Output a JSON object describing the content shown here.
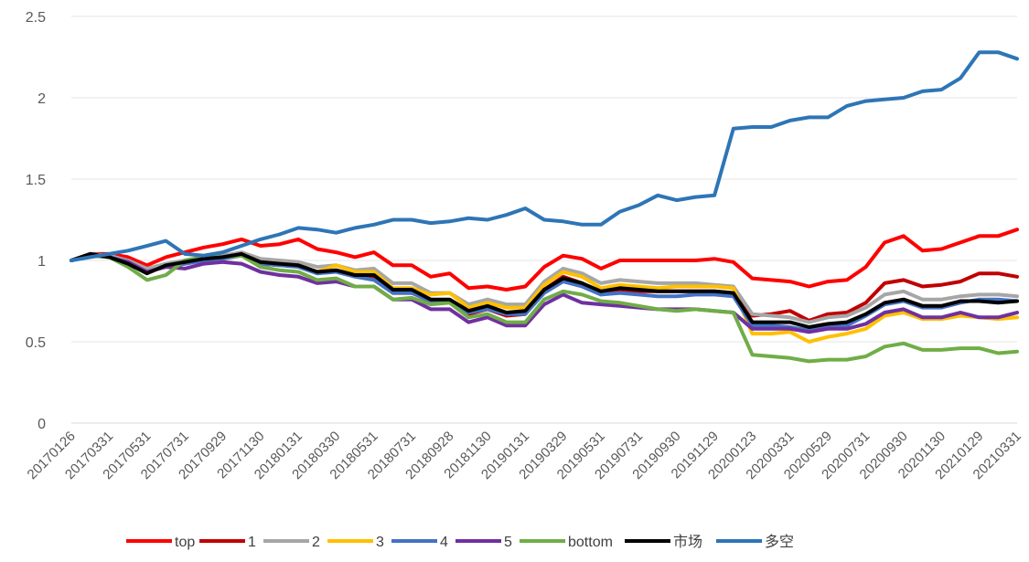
{
  "chart_data": {
    "type": "line",
    "title": "",
    "xlabel": "",
    "ylabel": "",
    "ylim": [
      0,
      2.5
    ],
    "yticks": [
      "0",
      "0.5",
      "1",
      "1.5",
      "2",
      "2.5"
    ],
    "grid": "horizontal",
    "legend": "bottom",
    "x_tick_labels": [
      "20170126",
      "20170331",
      "20170531",
      "20170731",
      "20170929",
      "20171130",
      "20180131",
      "20180330",
      "20180531",
      "20180731",
      "20180928",
      "20181130",
      "20190131",
      "20190329",
      "20190531",
      "20190731",
      "20190930",
      "20191129",
      "20200123",
      "20200331",
      "20200529",
      "20200731",
      "20200930",
      "20201130",
      "20210129",
      "20210331"
    ],
    "x": [
      "20170126",
      "20170228",
      "20170331",
      "20170428",
      "20170531",
      "20170630",
      "20170731",
      "20170831",
      "20170929",
      "20171031",
      "20171130",
      "20171229",
      "20180131",
      "20180228",
      "20180330",
      "20180427",
      "20180531",
      "20180629",
      "20180731",
      "20180831",
      "20180928",
      "20181031",
      "20181130",
      "20181228",
      "20190131",
      "20190228",
      "20190329",
      "20190430",
      "20190531",
      "20190628",
      "20190731",
      "20190830",
      "20190930",
      "20191031",
      "20191129",
      "20191231",
      "20200123",
      "20200228",
      "20200331",
      "20200430",
      "20200529",
      "20200630",
      "20200731",
      "20200831",
      "20200930",
      "20201030",
      "20201130",
      "20201231",
      "20210129",
      "20210226",
      "20210331"
    ],
    "series": [
      {
        "name": "top",
        "color": "#ff0000",
        "values": [
          1.0,
          1.04,
          1.04,
          1.02,
          0.97,
          1.02,
          1.05,
          1.08,
          1.1,
          1.13,
          1.09,
          1.1,
          1.13,
          1.07,
          1.05,
          1.02,
          1.05,
          0.97,
          0.97,
          0.9,
          0.92,
          0.83,
          0.84,
          0.82,
          0.84,
          0.96,
          1.03,
          1.01,
          0.95,
          1.0,
          1.0,
          1.0,
          1.0,
          1.0,
          1.01,
          0.99,
          0.89,
          0.88,
          0.87,
          0.84,
          0.87,
          0.88,
          0.96,
          1.11,
          1.15,
          1.06,
          1.07,
          1.11,
          1.15,
          1.15,
          1.19
        ]
      },
      {
        "name": "1",
        "color": "#c00000",
        "values": [
          1.0,
          1.04,
          1.03,
          1.0,
          0.94,
          0.97,
          0.98,
          1.0,
          1.02,
          1.04,
          0.98,
          0.97,
          0.97,
          0.93,
          0.94,
          0.91,
          0.9,
          0.8,
          0.8,
          0.75,
          0.75,
          0.67,
          0.7,
          0.66,
          0.67,
          0.82,
          0.9,
          0.86,
          0.8,
          0.82,
          0.81,
          0.81,
          0.81,
          0.81,
          0.81,
          0.8,
          0.66,
          0.67,
          0.69,
          0.63,
          0.67,
          0.68,
          0.74,
          0.86,
          0.88,
          0.84,
          0.85,
          0.87,
          0.92,
          0.92,
          0.9
        ]
      },
      {
        "name": "2",
        "color": "#a6a6a6",
        "values": [
          1.0,
          1.04,
          1.03,
          1.0,
          0.95,
          0.98,
          1.0,
          1.02,
          1.03,
          1.05,
          1.01,
          1.0,
          0.99,
          0.96,
          0.97,
          0.94,
          0.95,
          0.86,
          0.86,
          0.8,
          0.8,
          0.73,
          0.76,
          0.73,
          0.73,
          0.87,
          0.95,
          0.92,
          0.86,
          0.88,
          0.87,
          0.86,
          0.86,
          0.86,
          0.85,
          0.84,
          0.67,
          0.66,
          0.65,
          0.62,
          0.65,
          0.66,
          0.71,
          0.79,
          0.81,
          0.76,
          0.76,
          0.78,
          0.79,
          0.79,
          0.78
        ]
      },
      {
        "name": "3",
        "color": "#ffc000",
        "values": [
          1.0,
          1.03,
          1.02,
          0.98,
          0.93,
          0.96,
          0.98,
          1.0,
          1.01,
          1.03,
          0.99,
          0.97,
          0.97,
          0.93,
          0.97,
          0.93,
          0.93,
          0.83,
          0.83,
          0.79,
          0.8,
          0.71,
          0.74,
          0.71,
          0.71,
          0.85,
          0.93,
          0.9,
          0.83,
          0.85,
          0.84,
          0.83,
          0.84,
          0.84,
          0.84,
          0.83,
          0.55,
          0.55,
          0.56,
          0.5,
          0.53,
          0.55,
          0.58,
          0.66,
          0.68,
          0.64,
          0.64,
          0.66,
          0.65,
          0.64,
          0.65
        ]
      },
      {
        "name": "4",
        "color": "#4472c4",
        "values": [
          1.0,
          1.03,
          1.02,
          0.99,
          0.93,
          0.96,
          0.98,
          1.0,
          1.01,
          1.03,
          0.98,
          0.97,
          0.96,
          0.92,
          0.93,
          0.9,
          0.88,
          0.8,
          0.8,
          0.75,
          0.75,
          0.68,
          0.7,
          0.67,
          0.67,
          0.8,
          0.87,
          0.84,
          0.79,
          0.8,
          0.79,
          0.78,
          0.78,
          0.79,
          0.79,
          0.78,
          0.6,
          0.6,
          0.59,
          0.57,
          0.59,
          0.6,
          0.66,
          0.73,
          0.75,
          0.71,
          0.71,
          0.74,
          0.76,
          0.76,
          0.75
        ]
      },
      {
        "name": "5",
        "color": "#7030a0",
        "values": [
          1.0,
          1.03,
          1.02,
          0.99,
          0.93,
          0.96,
          0.95,
          0.98,
          0.99,
          0.98,
          0.93,
          0.91,
          0.9,
          0.86,
          0.87,
          0.84,
          0.84,
          0.76,
          0.76,
          0.7,
          0.7,
          0.62,
          0.65,
          0.6,
          0.6,
          0.73,
          0.79,
          0.74,
          0.73,
          0.72,
          0.71,
          0.7,
          0.7,
          0.7,
          0.69,
          0.68,
          0.58,
          0.58,
          0.58,
          0.56,
          0.58,
          0.58,
          0.61,
          0.68,
          0.7,
          0.65,
          0.65,
          0.68,
          0.65,
          0.65,
          0.68
        ]
      },
      {
        "name": "bottom",
        "color": "#70ad47",
        "values": [
          1.0,
          1.03,
          1.02,
          0.96,
          0.88,
          0.91,
          1.0,
          1.02,
          1.02,
          1.03,
          0.96,
          0.94,
          0.93,
          0.88,
          0.89,
          0.84,
          0.84,
          0.76,
          0.77,
          0.73,
          0.74,
          0.65,
          0.67,
          0.62,
          0.62,
          0.76,
          0.81,
          0.79,
          0.75,
          0.74,
          0.72,
          0.7,
          0.69,
          0.7,
          0.69,
          0.68,
          0.42,
          0.41,
          0.4,
          0.38,
          0.39,
          0.39,
          0.41,
          0.47,
          0.49,
          0.45,
          0.45,
          0.46,
          0.46,
          0.43,
          0.44
        ]
      },
      {
        "name": "市场",
        "color": "#000000",
        "values": [
          1.0,
          1.04,
          1.02,
          0.98,
          0.92,
          0.97,
          0.99,
          1.01,
          1.02,
          1.04,
          0.99,
          0.98,
          0.97,
          0.93,
          0.94,
          0.91,
          0.91,
          0.82,
          0.82,
          0.76,
          0.76,
          0.69,
          0.72,
          0.68,
          0.69,
          0.82,
          0.89,
          0.86,
          0.81,
          0.83,
          0.82,
          0.81,
          0.81,
          0.81,
          0.81,
          0.8,
          0.62,
          0.62,
          0.62,
          0.59,
          0.61,
          0.62,
          0.67,
          0.74,
          0.76,
          0.72,
          0.72,
          0.75,
          0.75,
          0.74,
          0.75
        ]
      },
      {
        "name": "多空",
        "color": "#2e75b6",
        "values": [
          1.0,
          1.02,
          1.04,
          1.06,
          1.09,
          1.12,
          1.04,
          1.03,
          1.05,
          1.09,
          1.13,
          1.16,
          1.2,
          1.19,
          1.17,
          1.2,
          1.22,
          1.25,
          1.25,
          1.23,
          1.24,
          1.26,
          1.25,
          1.28,
          1.32,
          1.25,
          1.24,
          1.22,
          1.22,
          1.3,
          1.34,
          1.4,
          1.37,
          1.39,
          1.4,
          1.81,
          1.82,
          1.82,
          1.86,
          1.88,
          1.88,
          1.95,
          1.98,
          1.99,
          2.0,
          2.04,
          2.05,
          2.12,
          2.28,
          2.28,
          2.24
        ]
      }
    ]
  }
}
